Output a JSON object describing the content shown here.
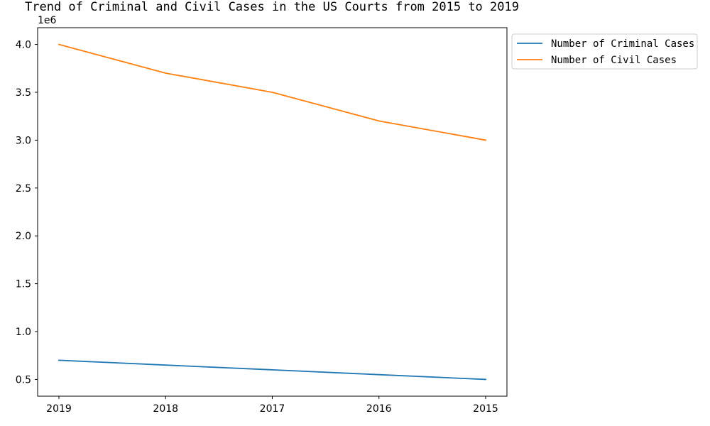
{
  "chart_data": {
    "type": "line",
    "title": "Trend of Criminal and Civil Cases in the US Courts from 2015 to 2019",
    "xlabel": "",
    "ylabel": "",
    "categories": [
      "2019",
      "2018",
      "2017",
      "2016",
      "2015"
    ],
    "series": [
      {
        "name": "Number of Criminal Cases",
        "values": [
          700000,
          650000,
          600000,
          550000,
          500000
        ],
        "color": "#1f77b4"
      },
      {
        "name": "Number of Civil Cases",
        "values": [
          4000000,
          3700000,
          3500000,
          3200000,
          3000000
        ],
        "color": "#ff7f0e"
      }
    ],
    "ylim": [
      325000,
      4175000
    ],
    "yticks": [
      500000,
      1000000,
      1500000,
      2000000,
      2500000,
      3000000,
      3500000,
      4000000
    ],
    "ytick_labels": [
      "0.5",
      "1.0",
      "1.5",
      "2.0",
      "2.5",
      "3.0",
      "3.5",
      "4.0"
    ],
    "offset_label": "1e6",
    "legend_position": "upper-right-outside",
    "grid": false
  }
}
